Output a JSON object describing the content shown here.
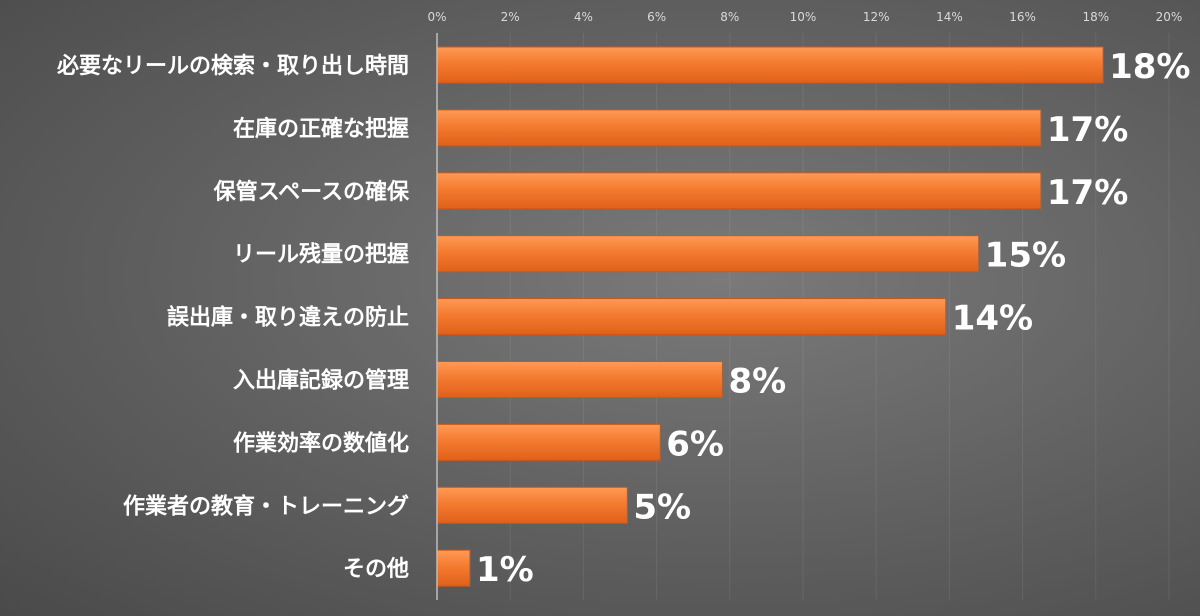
{
  "chart_data": {
    "type": "bar",
    "orientation": "horizontal",
    "categories": [
      "必要なリールの検索・取り出し時間",
      "在庫の正確な把握",
      "保管スペースの確保",
      "リール残量の把握",
      "誤出庫・取り違えの防止",
      "入出庫記録の管理",
      "作業効率の数値化",
      "作業者の教育・トレーニング",
      "その他"
    ],
    "values": [
      18.2,
      16.5,
      16.5,
      14.8,
      13.9,
      7.8,
      6.1,
      5.2,
      0.9
    ],
    "value_labels": [
      "18%",
      "17%",
      "17%",
      "15%",
      "14%",
      "8%",
      "6%",
      "5%",
      "1%"
    ],
    "xlim": [
      0,
      20
    ],
    "xticks": [
      0,
      2,
      4,
      6,
      8,
      10,
      12,
      14,
      16,
      18,
      20
    ],
    "xtick_labels": [
      "0%",
      "2%",
      "4%",
      "6%",
      "8%",
      "10%",
      "12%",
      "14%",
      "16%",
      "18%",
      "20%"
    ],
    "x_axis_position": "top",
    "grid": true,
    "legend": "none",
    "bar_color": "#f47b30",
    "bar_color_light": "#ff9a55",
    "label_color": "#ffffff",
    "tick_color": "#d9d9d9"
  }
}
